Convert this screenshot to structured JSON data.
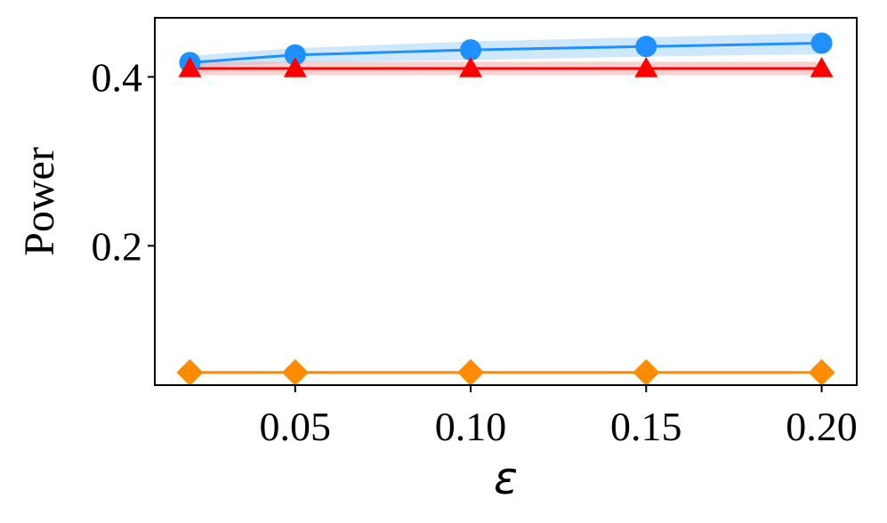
{
  "chart_data": {
    "type": "line",
    "xlabel": "ε",
    "ylabel": "Power",
    "xlim": [
      0.01,
      0.21
    ],
    "ylim": [
      0.035,
      0.47
    ],
    "xticks": [
      0.05,
      0.1,
      0.15,
      0.2
    ],
    "xtick_labels": [
      "0.05",
      "0.10",
      "0.15",
      "0.20"
    ],
    "yticks": [
      0.2,
      0.4
    ],
    "ytick_labels": [
      "0.2",
      "0.4"
    ],
    "grid": false,
    "x": [
      0.02,
      0.05,
      0.1,
      0.15,
      0.2
    ],
    "series": [
      {
        "color": "#1E90FF",
        "band_color": "#A7D3F5",
        "marker": "circle",
        "values": [
          0.417,
          0.426,
          0.432,
          0.436,
          0.44
        ],
        "lower": [
          0.411,
          0.417,
          0.42,
          0.424,
          0.427
        ],
        "upper": [
          0.425,
          0.434,
          0.442,
          0.447,
          0.452
        ]
      },
      {
        "color": "#FF0000",
        "band_color": "#F4AAAA",
        "marker": "triangle",
        "values": [
          0.41,
          0.41,
          0.41,
          0.41,
          0.41
        ],
        "lower": [
          0.402,
          0.402,
          0.402,
          0.402,
          0.402
        ],
        "upper": [
          0.418,
          0.418,
          0.418,
          0.418,
          0.418
        ]
      },
      {
        "color": "#FF8C00",
        "band_color": "#FFD9A8",
        "marker": "diamond",
        "values": [
          0.05,
          0.05,
          0.05,
          0.05,
          0.05
        ],
        "lower": [
          0.048,
          0.048,
          0.048,
          0.048,
          0.048
        ],
        "upper": [
          0.052,
          0.052,
          0.052,
          0.052,
          0.052
        ]
      }
    ]
  }
}
